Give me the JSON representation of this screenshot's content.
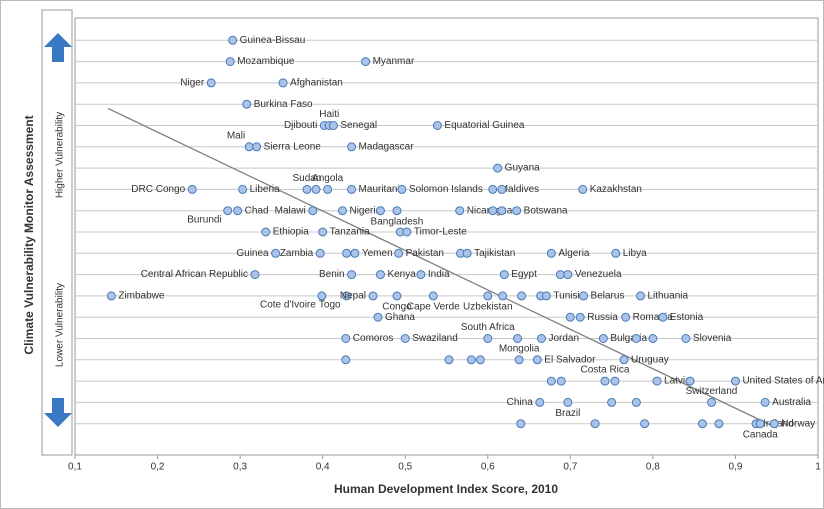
{
  "chart_data": {
    "type": "scatter",
    "x_label": "Human Development Index Score, 2010",
    "y_label": "Climate Vulnerability  Monitor Assessment",
    "y_upper_label": "Higher Vulnerability",
    "y_lower_label": "Lower Vulnerability",
    "xlim": [
      0.1,
      1
    ],
    "xticks": [
      {
        "value": 0.1,
        "label": "0,1"
      },
      {
        "value": 0.2,
        "label": "0,2"
      },
      {
        "value": 0.3,
        "label": "0,3"
      },
      {
        "value": 0.4,
        "label": "0,4"
      },
      {
        "value": 0.5,
        "label": "0,5"
      },
      {
        "value": 0.6,
        "label": "0,6"
      },
      {
        "value": 0.7,
        "label": "0,7"
      },
      {
        "value": 0.8,
        "label": "0,8"
      },
      {
        "value": 0.9,
        "label": "0,9"
      },
      1
    ],
    "ylim": [
      0,
      20
    ],
    "yticks": [
      1,
      2,
      3,
      4,
      5,
      6,
      7,
      8,
      9,
      10,
      11,
      12,
      13,
      14,
      15,
      16,
      17,
      18,
      19
    ],
    "grid": true,
    "color": "#a9c4e8",
    "edge_color": "#4a78b8",
    "trend_line": {
      "x": [
        0.14,
        0.95
      ],
      "y": [
        15.8,
        0.8
      ],
      "color": "#7f7f7f"
    },
    "labels": [
      "Guinea-Bissau",
      "Mozambique",
      "Myanmar",
      "Niger",
      "Afghanistan",
      "Burkina Faso",
      "Djibouti",
      "Haiti",
      "Senegal",
      "Equatorial Guinea",
      "Mali",
      "Sierra Leone",
      "Madagascar",
      "Guyana",
      "DRC Congo",
      "Liberia",
      "Sudan",
      null,
      "Angola",
      "Mauritania",
      "Solomon Islands",
      "Maldives",
      null,
      "Kazakhstan",
      "Burundi",
      "Chad",
      "Malawi",
      "Nigeria",
      null,
      "Bangladesh",
      "Nicaragua",
      null,
      null,
      "Botswana",
      "Ethiopia",
      "Tanzania",
      null,
      "Timor-Leste",
      "Guinea",
      "Zambia",
      null,
      "Yemen",
      "Pakistan",
      null,
      "Tajikistan",
      "Algeria",
      "Libya",
      "Central African Republic",
      "Benin",
      "Kenya",
      "India",
      "Egypt",
      null,
      "Venezuela",
      "Zimbabwe",
      "Cote d'Ivoire",
      "Togo",
      "Nepal",
      "Congo",
      "Cape Verde",
      "Uzbekistan",
      null,
      null,
      null,
      "Tunisia",
      "Belarus",
      "Lithuania",
      "Ghana",
      null,
      "Russia",
      "Romania",
      "Estonia",
      "Comoros",
      "Swaziland",
      "South Africa",
      null,
      "Jordan",
      "Bulgaria",
      null,
      null,
      "Slovenia",
      null,
      null,
      null,
      null,
      "Mongolia",
      "El Salvador",
      "Uruguay",
      null,
      null,
      "Costa Rica",
      null,
      "Latvia",
      null,
      "United States of America",
      "China",
      "Brazil",
      null,
      null,
      "Switzerland",
      "Australia",
      null,
      null,
      null,
      "Ireland",
      "Norway",
      "Canada",
      null,
      null
    ],
    "x": [
      0.291,
      0.288,
      0.452,
      0.265,
      0.352,
      0.308,
      0.402,
      0.408,
      0.413,
      0.539,
      0.311,
      0.32,
      0.435,
      0.612,
      0.242,
      0.303,
      0.381,
      0.392,
      0.406,
      0.435,
      0.496,
      0.606,
      0.617,
      0.715,
      0.285,
      0.297,
      0.388,
      0.424,
      0.47,
      0.49,
      0.566,
      0.606,
      0.617,
      0.635,
      0.331,
      0.4,
      0.494,
      0.502,
      0.343,
      0.397,
      0.429,
      0.439,
      0.492,
      0.567,
      0.575,
      0.677,
      0.755,
      0.318,
      0.435,
      0.47,
      0.519,
      0.62,
      0.688,
      0.697,
      0.144,
      0.399,
      0.429,
      0.461,
      0.49,
      0.534,
      0.6,
      0.618,
      0.641,
      0.664,
      0.671,
      0.716,
      0.785,
      0.467,
      0.7,
      0.712,
      0.767,
      0.812,
      0.428,
      0.5,
      0.6,
      0.636,
      0.665,
      0.74,
      0.78,
      0.8,
      0.84,
      0.428,
      0.553,
      0.58,
      0.591,
      0.638,
      0.66,
      0.765,
      0.677,
      0.689,
      0.742,
      0.754,
      0.805,
      0.845,
      0.9,
      0.663,
      0.697,
      0.75,
      0.78,
      0.871,
      0.936,
      0.64,
      0.73,
      0.79,
      0.925,
      0.947,
      0.93,
      0.86,
      0.88
    ],
    "y": [
      19,
      18,
      18,
      17,
      17,
      16,
      15,
      15,
      15,
      15,
      14,
      14,
      14,
      13,
      12,
      12,
      12,
      12,
      12,
      12,
      12,
      12,
      12,
      12,
      11,
      11,
      11,
      11,
      11,
      11,
      11,
      11,
      11,
      11,
      10,
      10,
      10,
      10,
      9,
      9,
      9,
      9,
      9,
      9,
      9,
      9,
      9,
      8,
      8,
      8,
      8,
      8,
      8,
      8,
      7,
      7,
      7,
      7,
      7,
      7,
      7,
      7,
      7,
      7,
      7,
      7,
      7,
      6,
      6,
      6,
      6,
      6,
      5,
      5,
      5,
      5,
      5,
      5,
      5,
      5,
      5,
      4,
      4,
      4,
      4,
      4,
      4,
      4,
      3,
      3,
      3,
      3,
      3,
      3,
      3,
      2,
      2,
      2,
      2,
      2,
      2,
      1,
      1,
      1,
      1,
      1,
      1,
      1,
      1
    ]
  }
}
